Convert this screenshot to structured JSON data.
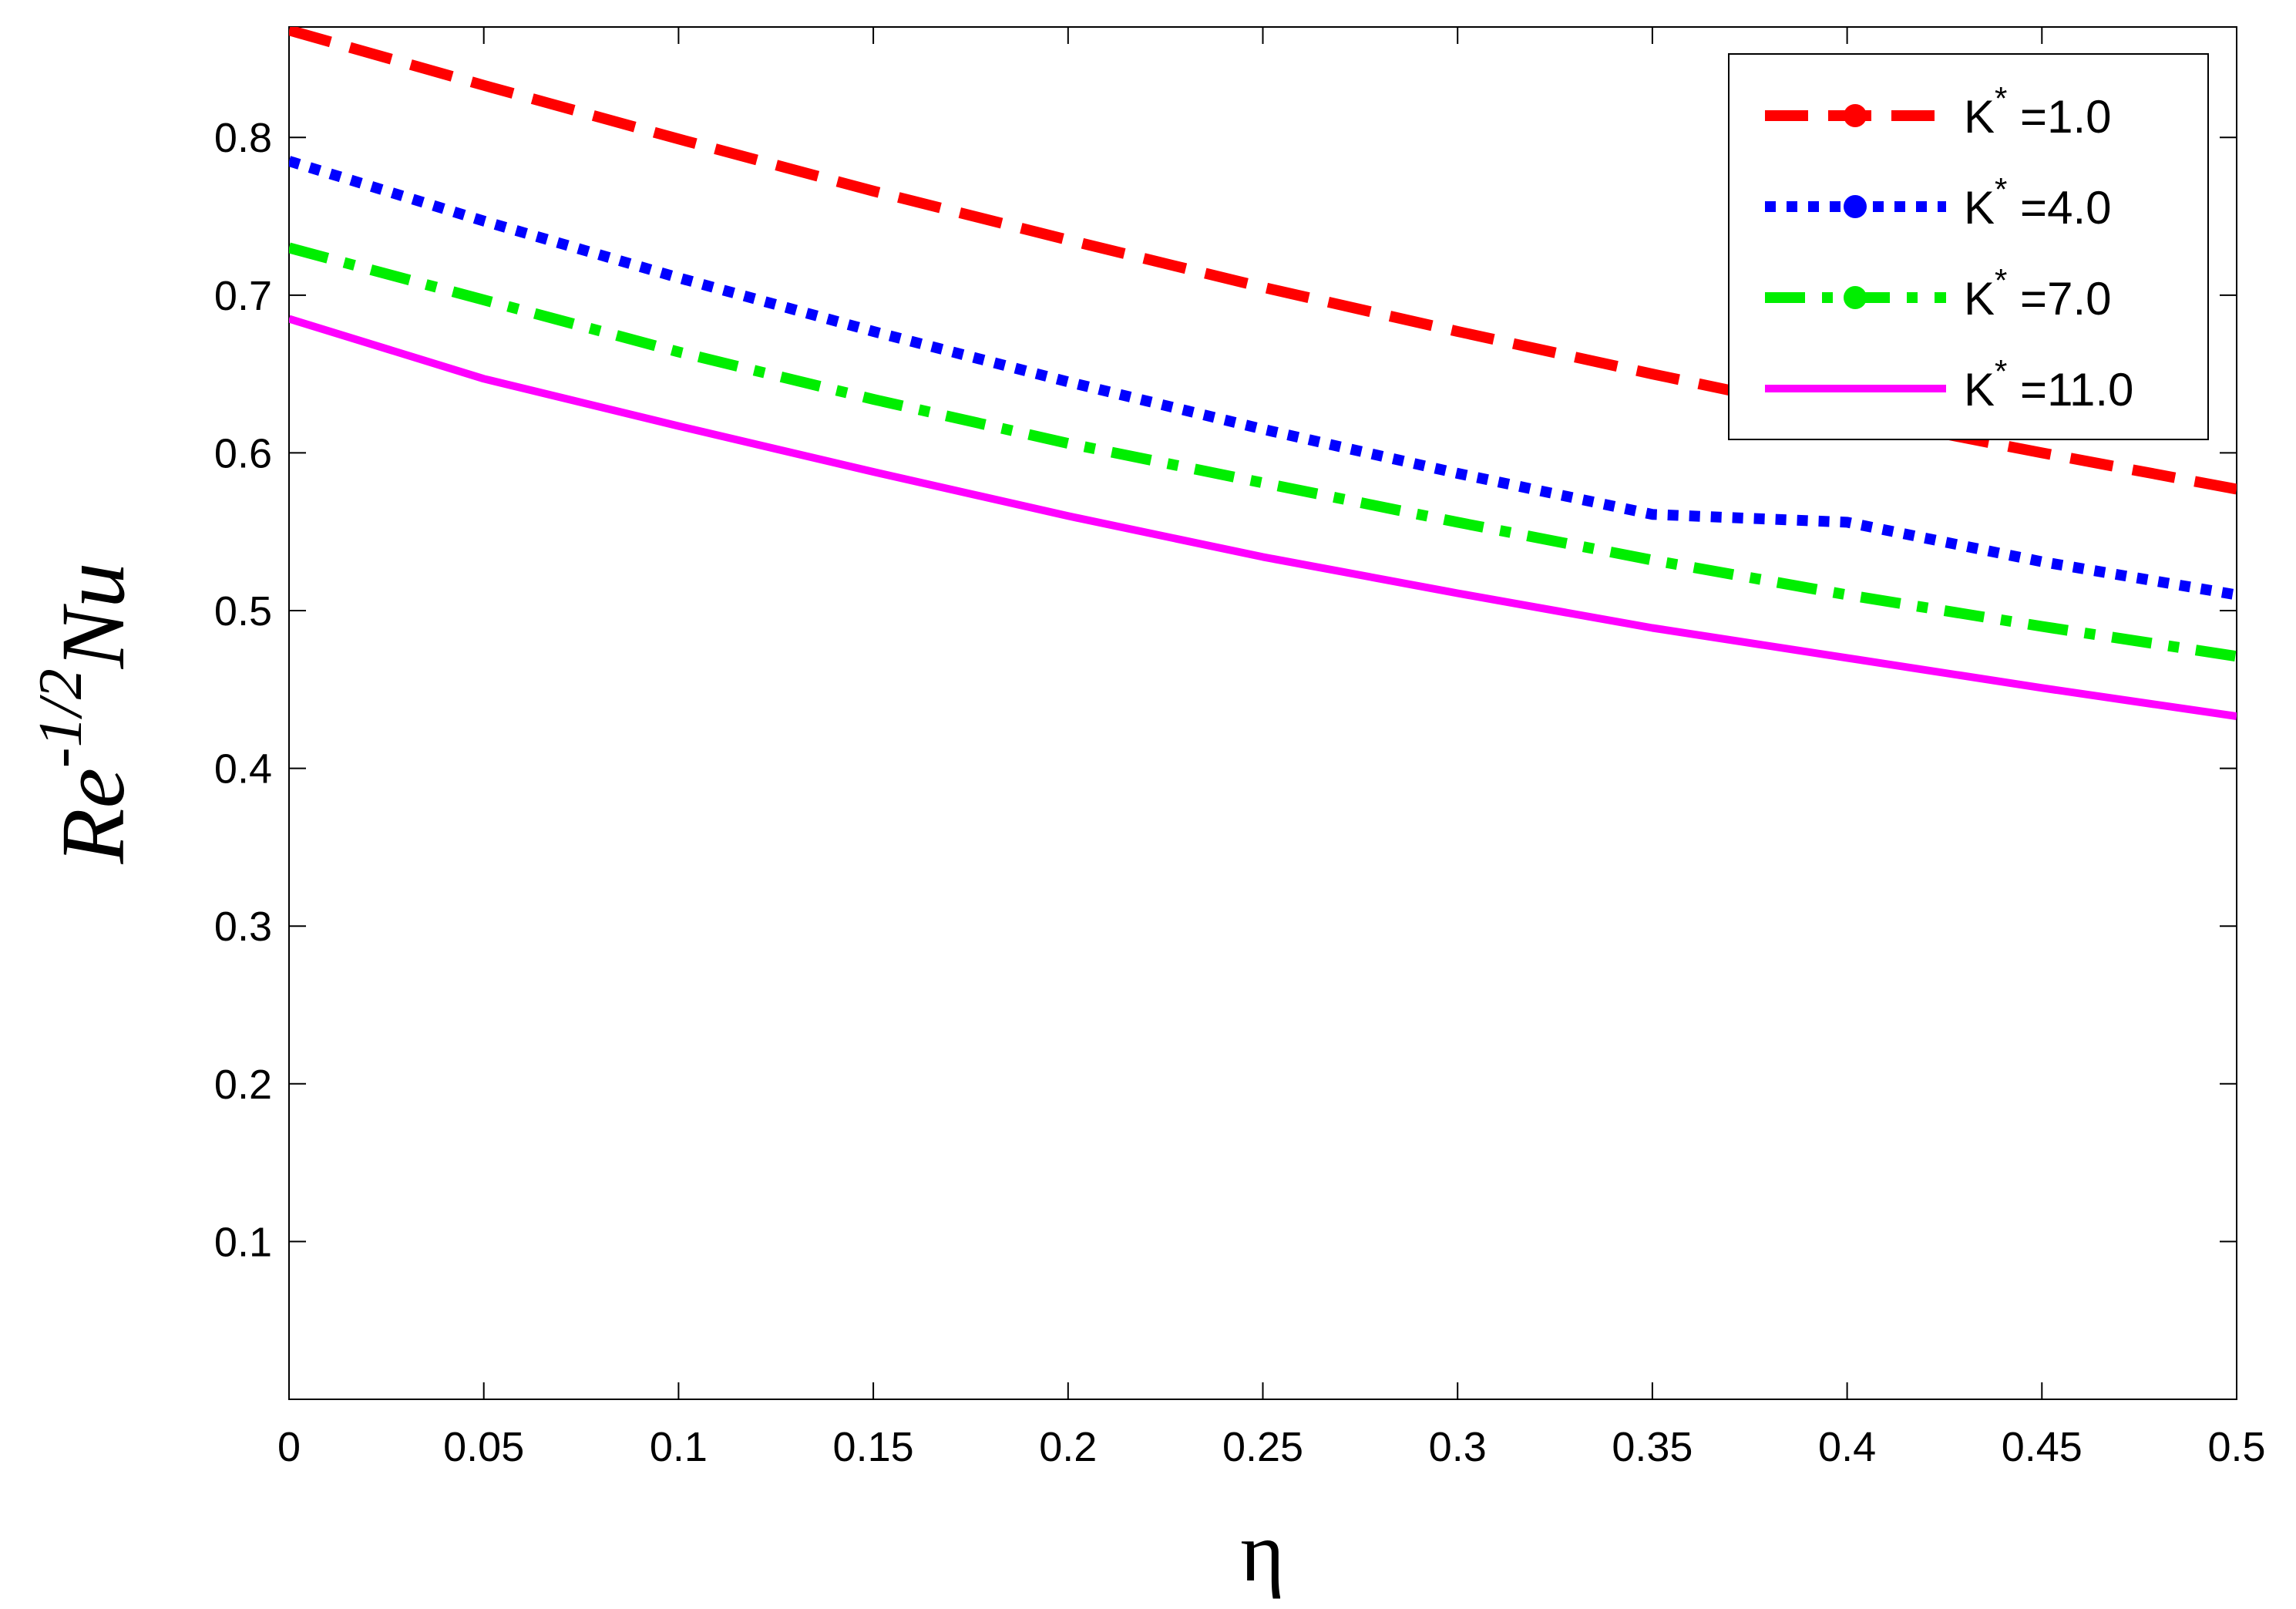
{
  "chart_data": {
    "type": "line",
    "xlabel": "η",
    "ylabel": {
      "base1": "Re",
      "exponent": "-1/2",
      "base2": "Nu"
    },
    "xlim": [
      0,
      0.5
    ],
    "ylim": [
      0,
      0.87
    ],
    "xticks": [
      "0",
      "0.05",
      "0.1",
      "0.15",
      "0.2",
      "0.25",
      "0.3",
      "0.35",
      "0.4",
      "0.45",
      "0.5"
    ],
    "yticks": [
      "0.1",
      "0.2",
      "0.3",
      "0.4",
      "0.5",
      "0.6",
      "0.7",
      "0.8"
    ],
    "grid": false,
    "legend_position": "top-right",
    "series": [
      {
        "name": "K* =1.0",
        "label_base": "K",
        "label_sup": "*",
        "label_rest": " =1.0",
        "color": "#ff0000",
        "style": "dashed",
        "x": [
          0,
          0.05,
          0.1,
          0.15,
          0.2,
          0.25,
          0.3,
          0.35,
          0.4,
          0.45,
          0.5
        ],
        "y": [
          0.868,
          0.833,
          0.799,
          0.766,
          0.735,
          0.705,
          0.677,
          0.65,
          0.624,
          0.6,
          0.577
        ]
      },
      {
        "name": "K* =4.0",
        "label_base": "K",
        "label_sup": "*",
        "label_rest": " =4.0",
        "color": "#0000ff",
        "style": "dotted",
        "x": [
          0,
          0.05,
          0.1,
          0.15,
          0.2,
          0.25,
          0.3,
          0.35,
          0.4,
          0.45,
          0.5
        ],
        "y": [
          0.785,
          0.747,
          0.711,
          0.677,
          0.645,
          0.615,
          0.587,
          0.561,
          0.556,
          0.531,
          0.51
        ]
      },
      {
        "name": "K* =7.0",
        "label_base": "K",
        "label_sup": "*",
        "label_rest": " =7.0",
        "color": "#00ee00",
        "style": "dashdot",
        "x": [
          0,
          0.05,
          0.1,
          0.15,
          0.2,
          0.25,
          0.3,
          0.35,
          0.4,
          0.45,
          0.5
        ],
        "y": [
          0.73,
          0.697,
          0.664,
          0.634,
          0.606,
          0.581,
          0.556,
          0.532,
          0.51,
          0.49,
          0.471
        ]
      },
      {
        "name": "K* =11.0",
        "label_base": "K",
        "label_sup": "*",
        "label_rest": " =11.0",
        "color": "#ff00ff",
        "style": "solid",
        "x": [
          0,
          0.05,
          0.1,
          0.15,
          0.2,
          0.25,
          0.3,
          0.35,
          0.4,
          0.45,
          0.5
        ],
        "y": [
          0.685,
          0.647,
          0.617,
          0.588,
          0.56,
          0.534,
          0.511,
          0.489,
          0.47,
          0.451,
          0.433
        ]
      }
    ]
  }
}
